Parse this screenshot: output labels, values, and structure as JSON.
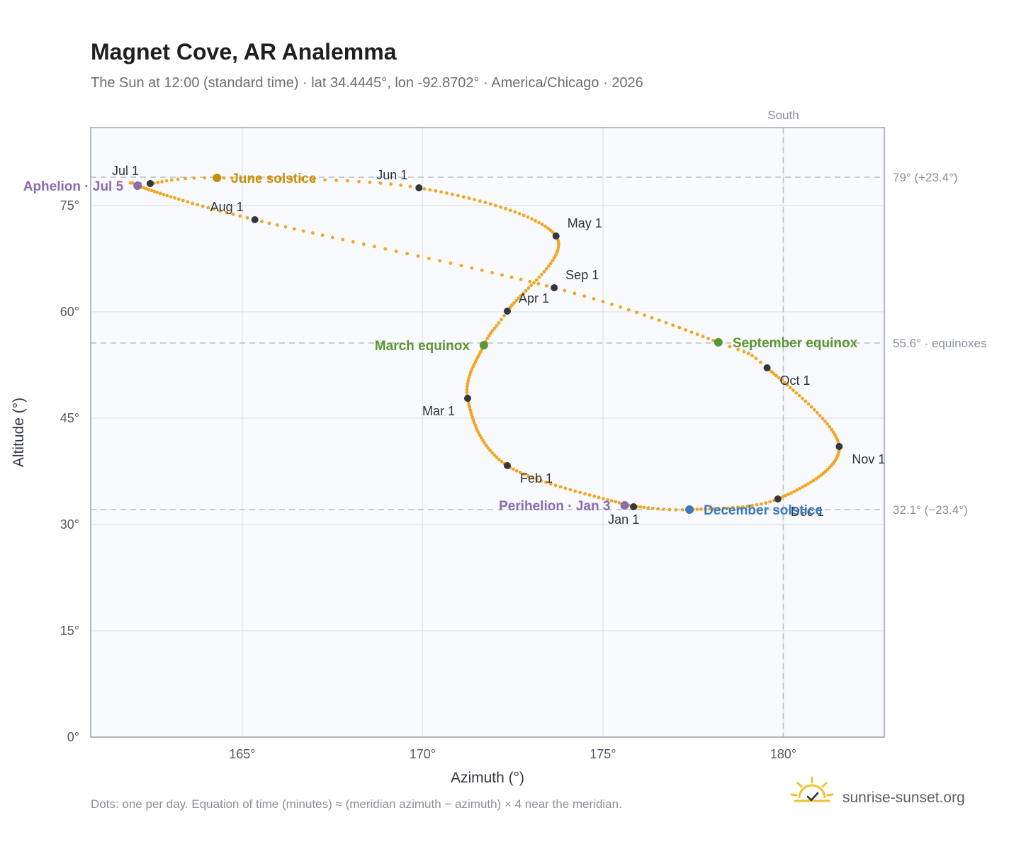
{
  "header": {
    "title": "Magnet Cove, AR Analemma",
    "subtitle": "The Sun at 12:00 (standard time) · lat 34.4445°, lon -92.8702° · America/Chicago · 2026"
  },
  "footer": {
    "note": "Dots: one per day. Equation of time (minutes) ≈ (meridian azimuth − azimuth) × 4 near the meridian.",
    "brand": "sunrise-sunset.org",
    "brand_icon": "sun-logo-icon"
  },
  "colors": {
    "curve": "#f2a623",
    "month_dot": "#33373c",
    "june_solstice": "#c8900c",
    "december_solstice": "#3a7abf",
    "equinox": "#5a9632",
    "apsis": "#8c6bb0",
    "plot_bg": "#f8fafd",
    "frame": "#9aa3af",
    "grid": "#e2e7ee",
    "ref_line": "#b8c0ca"
  },
  "chart_data": {
    "type": "scatter",
    "title": "Magnet Cove, AR Analemma",
    "xlabel": "Azimuth (°)",
    "ylabel": "Altitude (°)",
    "xlim": [
      160.8,
      182.8
    ],
    "ylim": [
      0,
      86
    ],
    "xticks": [
      165,
      170,
      175,
      180
    ],
    "yticks": [
      0,
      15,
      30,
      45,
      60,
      75
    ],
    "xtick_labels": [
      "165°",
      "170°",
      "175°",
      "180°"
    ],
    "ytick_labels": [
      "0°",
      "15°",
      "30°",
      "45°",
      "60°",
      "75°"
    ],
    "grid": true,
    "reference_lines": {
      "south": {
        "azimuth": 180,
        "label": "South"
      },
      "summer": {
        "altitude": 79.0,
        "label": "79° (+23.4°)"
      },
      "equinox": {
        "altitude": 55.6,
        "label": "55.6° · equinoxes"
      },
      "winter": {
        "altitude": 32.1,
        "label": "32.1° (−23.4°)"
      }
    },
    "curve_keypoints": [
      {
        "day": 1,
        "az": 175.85,
        "alt": 32.5
      },
      {
        "day": 32,
        "az": 172.35,
        "alt": 38.3
      },
      {
        "day": 60,
        "az": 171.25,
        "alt": 47.8
      },
      {
        "day": 80,
        "az": 171.7,
        "alt": 55.3
      },
      {
        "day": 91,
        "az": 172.35,
        "alt": 60.1
      },
      {
        "day": 121,
        "az": 173.7,
        "alt": 70.7
      },
      {
        "day": 152,
        "az": 169.9,
        "alt": 77.5
      },
      {
        "day": 172,
        "az": 164.3,
        "alt": 78.9
      },
      {
        "day": 182,
        "az": 162.45,
        "alt": 78.1
      },
      {
        "day": 186,
        "az": 162.1,
        "alt": 77.8
      },
      {
        "day": 213,
        "az": 165.35,
        "alt": 73.0
      },
      {
        "day": 244,
        "az": 173.65,
        "alt": 63.4
      },
      {
        "day": 266,
        "az": 178.2,
        "alt": 55.7
      },
      {
        "day": 274,
        "az": 179.55,
        "alt": 52.1
      },
      {
        "day": 305,
        "az": 181.55,
        "alt": 41.0
      },
      {
        "day": 335,
        "az": 179.85,
        "alt": 33.6
      },
      {
        "day": 355,
        "az": 177.4,
        "alt": 32.1
      },
      {
        "day": 365,
        "az": 175.95,
        "alt": 32.5
      }
    ],
    "months": [
      {
        "label": "Jan 1",
        "az": 175.85,
        "alt": 32.5,
        "anchor": "below"
      },
      {
        "label": "Feb 1",
        "az": 172.35,
        "alt": 38.3,
        "anchor": "below-right"
      },
      {
        "label": "Mar 1",
        "az": 171.25,
        "alt": 47.8,
        "anchor": "below-left"
      },
      {
        "label": "Apr 1",
        "az": 172.35,
        "alt": 60.1,
        "anchor": "above-right"
      },
      {
        "label": "May 1",
        "az": 173.7,
        "alt": 70.7,
        "anchor": "above-right"
      },
      {
        "label": "Jun 1",
        "az": 169.9,
        "alt": 77.5,
        "anchor": "above-left"
      },
      {
        "label": "Jul 1",
        "az": 162.45,
        "alt": 78.1,
        "anchor": "above-left"
      },
      {
        "label": "Aug 1",
        "az": 165.35,
        "alt": 73.0,
        "anchor": "above-left"
      },
      {
        "label": "Sep 1",
        "az": 173.65,
        "alt": 63.4,
        "anchor": "above-right"
      },
      {
        "label": "Oct 1",
        "az": 179.55,
        "alt": 52.1,
        "anchor": "below-right"
      },
      {
        "label": "Nov 1",
        "az": 181.55,
        "alt": 41.0,
        "anchor": "below-right"
      },
      {
        "label": "Dec 1",
        "az": 179.85,
        "alt": 33.6,
        "anchor": "below-right"
      }
    ],
    "events": [
      {
        "label": "June solstice",
        "az": 164.3,
        "alt": 78.9,
        "color_key": "june_solstice",
        "side": "right"
      },
      {
        "label": "December solstice",
        "az": 177.4,
        "alt": 32.1,
        "color_key": "december_solstice",
        "side": "right"
      },
      {
        "label": "March equinox",
        "az": 171.7,
        "alt": 55.3,
        "color_key": "equinox",
        "side": "left"
      },
      {
        "label": "September equinox",
        "az": 178.2,
        "alt": 55.7,
        "color_key": "equinox",
        "side": "right"
      },
      {
        "label": "Aphelion · Jul 5",
        "az": 162.1,
        "alt": 77.8,
        "color_key": "apsis",
        "side": "left"
      },
      {
        "label": "Perihelion · Jan 3",
        "az": 175.6,
        "alt": 32.7,
        "color_key": "apsis",
        "side": "left"
      }
    ]
  }
}
